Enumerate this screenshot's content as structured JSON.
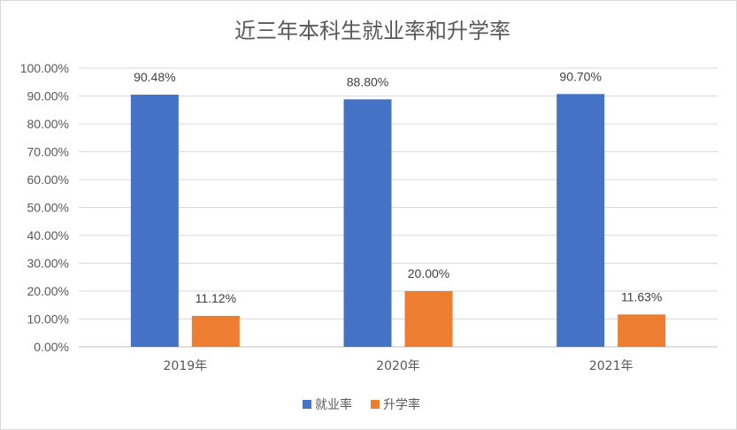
{
  "chart_data": {
    "type": "bar",
    "title": "近三年本科生就业率和升学率",
    "categories": [
      "2019年",
      "2020年",
      "2021年"
    ],
    "series": [
      {
        "name": "就业率",
        "color": "#4472C4",
        "values": [
          90.48,
          88.8,
          90.7
        ],
        "labels": [
          "90.48%",
          "88.80%",
          "90.70%"
        ]
      },
      {
        "name": "升学率",
        "color": "#ED7D31",
        "values": [
          11.12,
          20.0,
          11.63
        ],
        "labels": [
          "11.12%",
          "20.00%",
          "11.63%"
        ]
      }
    ],
    "ylim": [
      0,
      100
    ],
    "yticks": [
      "0.00%",
      "10.00%",
      "20.00%",
      "30.00%",
      "40.00%",
      "50.00%",
      "60.00%",
      "70.00%",
      "80.00%",
      "90.00%",
      "100.00%"
    ],
    "grid": true,
    "legend": "bottom"
  }
}
